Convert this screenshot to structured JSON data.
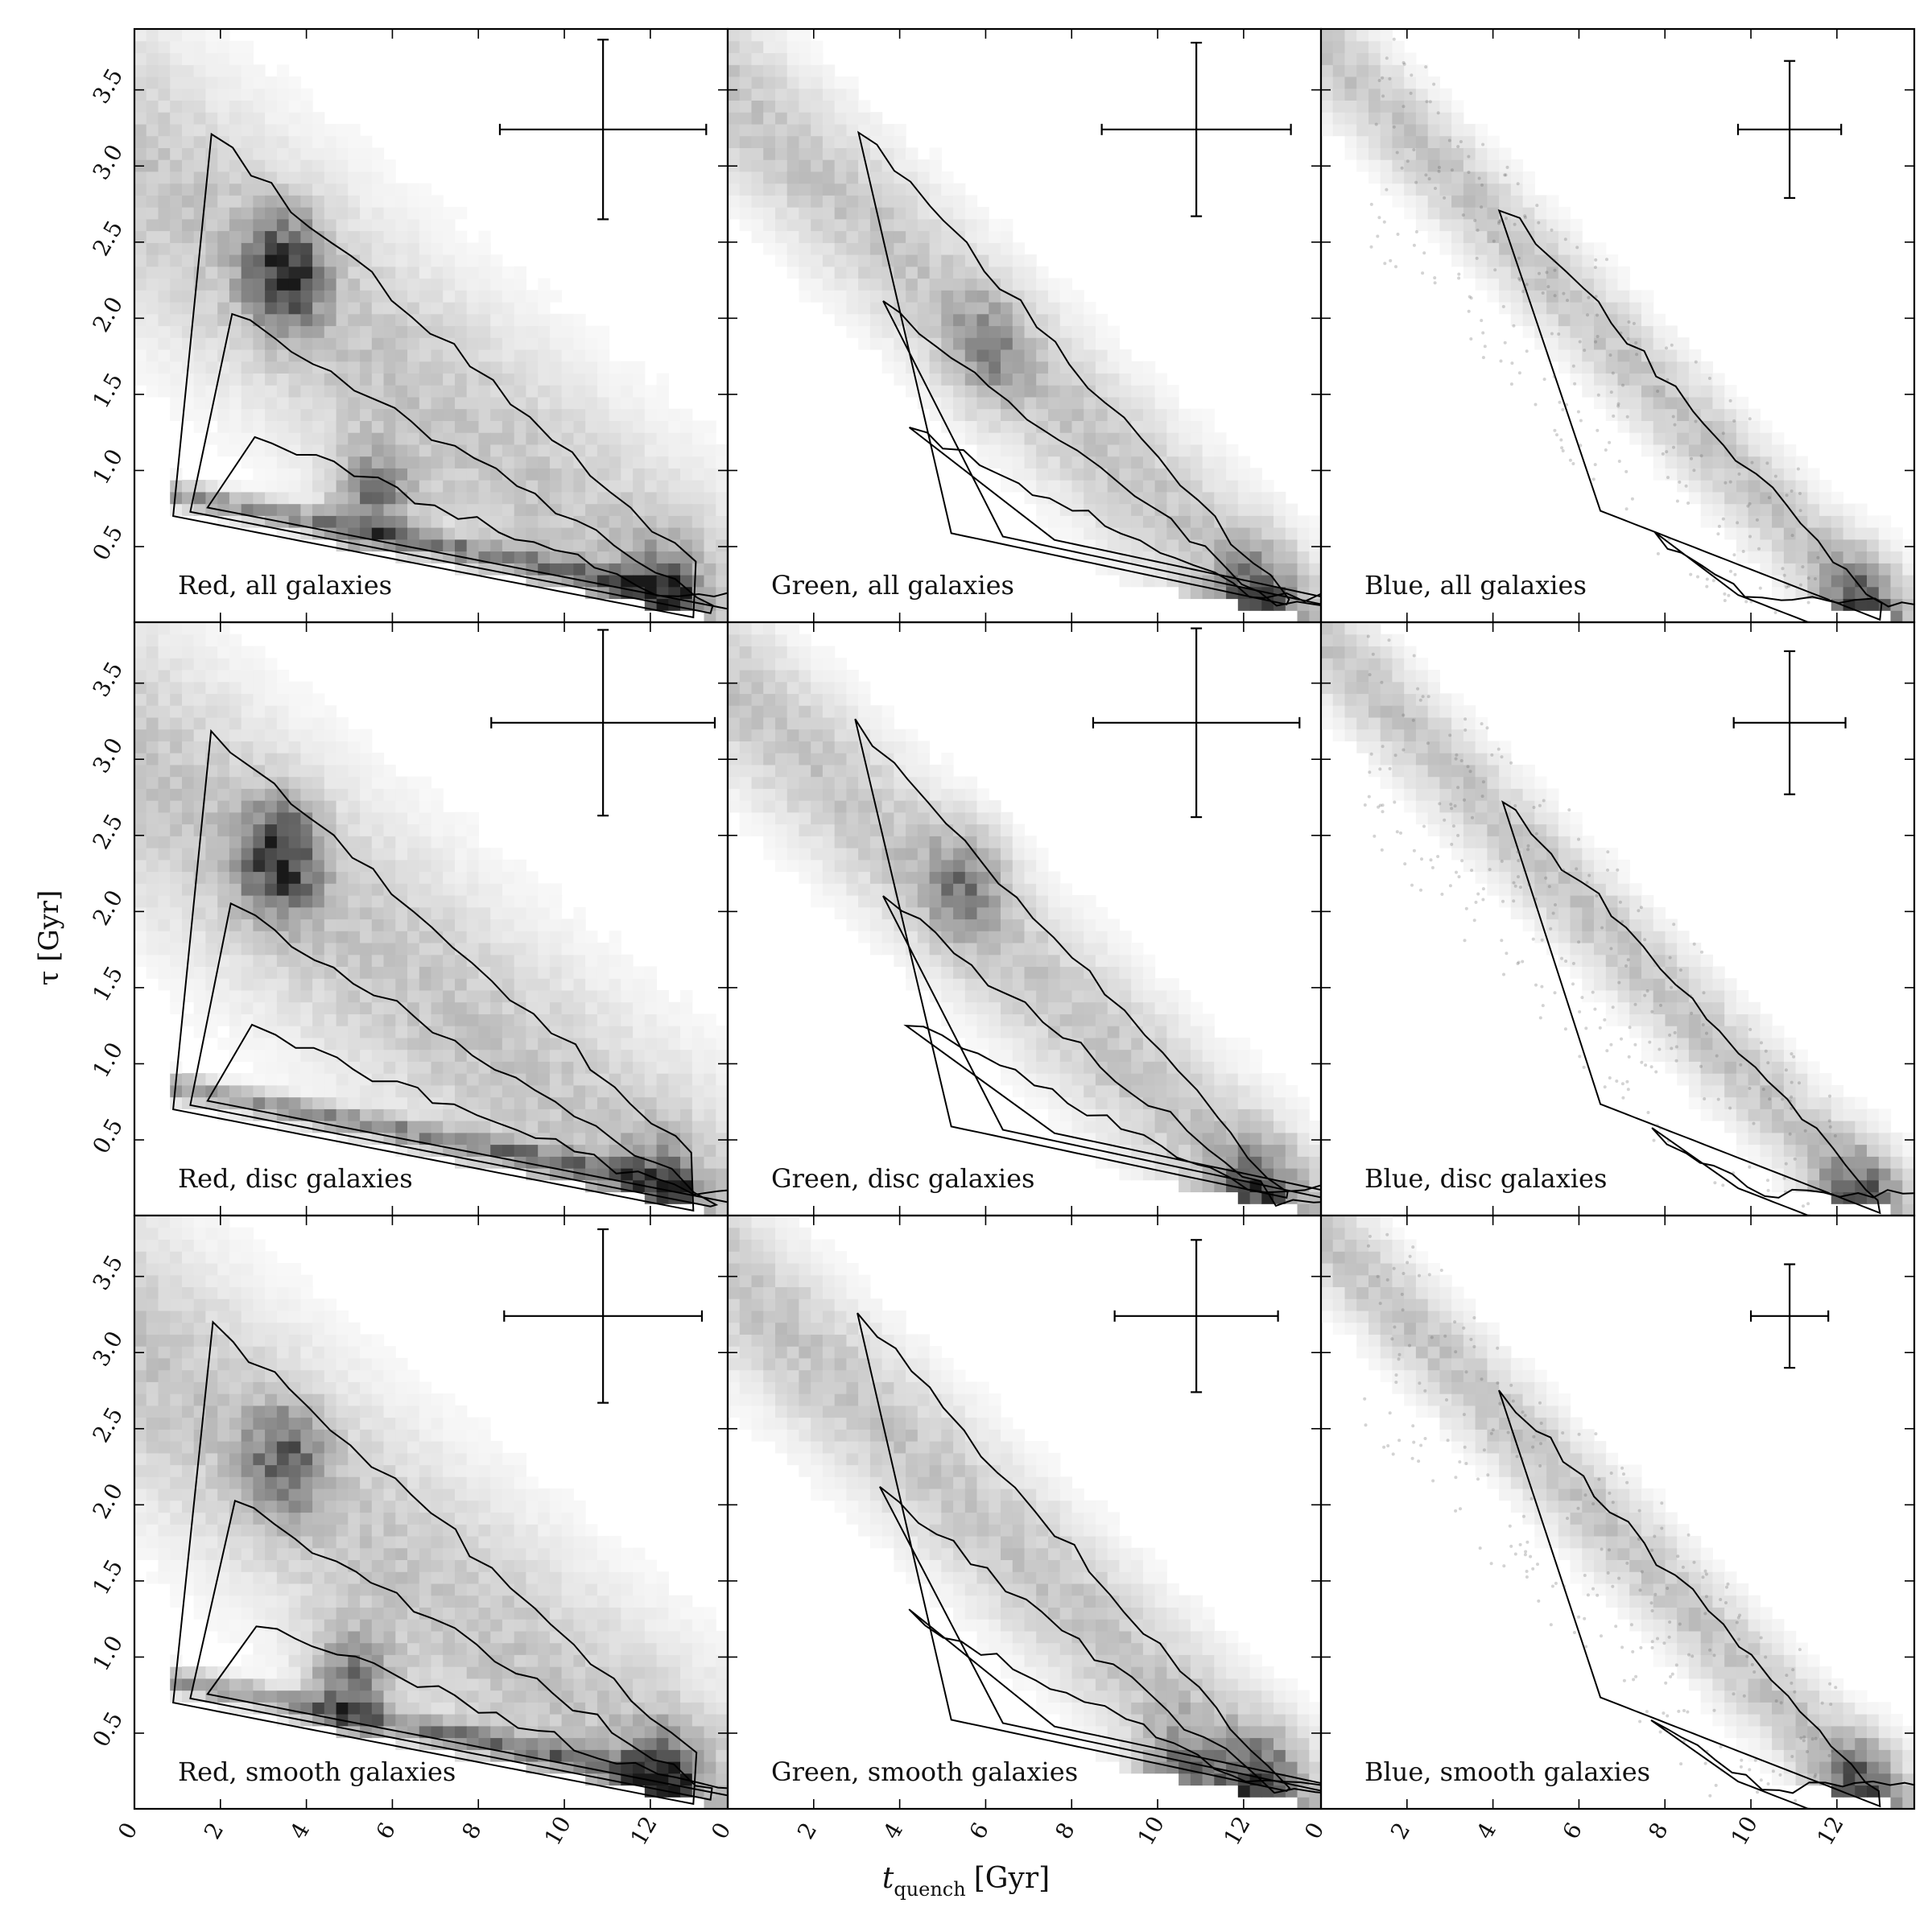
{
  "figure": {
    "xlabel": "t_quench [Gyr]",
    "xlabel_main": "t",
    "xlabel_sub": "quench",
    "xlabel_unit": "[Gyr]",
    "ylabel": "τ [Gyr]"
  },
  "chart_data": {
    "type": "heatmap",
    "description_of_layout": "3x3 grid of 2D density panels with contour lines and error-bar crosses",
    "xlim": [
      0,
      13.8
    ],
    "ylim": [
      0.003,
      3.9
    ],
    "x_ticks": [
      0,
      2,
      4,
      6,
      8,
      10,
      12
    ],
    "y_ticks": [
      0.5,
      1.0,
      1.5,
      2.0,
      2.5,
      3.0,
      3.5
    ],
    "x_tick_labels": [
      "0",
      "2",
      "4",
      "6",
      "8",
      "10",
      "12"
    ],
    "y_tick_labels": [
      "0.5",
      "1.0",
      "1.5",
      "2.0",
      "2.5",
      "3.0",
      "3.5"
    ],
    "grid": false,
    "colormap": "greys",
    "panels": [
      {
        "label": "Red, all galaxies",
        "row": 0,
        "col": 0,
        "errorbar": {
          "x": 10.9,
          "y": 3.24,
          "xerr_low": 2.4,
          "xerr_high": 2.4,
          "yerr_low": 0.59,
          "yerr_high": 0.59
        },
        "density_peaks": [
          {
            "x": 3.5,
            "y": 2.3,
            "w": 1.2
          },
          {
            "x": 12.2,
            "y": 0.15,
            "w": 1.0
          },
          {
            "x": 5.5,
            "y": 0.8,
            "w": 0.8
          }
        ]
      },
      {
        "label": "Green, all galaxies",
        "row": 0,
        "col": 1,
        "errorbar": {
          "x": 10.9,
          "y": 3.24,
          "xerr_low": 2.2,
          "xerr_high": 2.2,
          "yerr_low": 0.57,
          "yerr_high": 0.57
        },
        "density_peaks": [
          {
            "x": 12.3,
            "y": 0.12,
            "w": 1.0
          },
          {
            "x": 6.0,
            "y": 1.8,
            "w": 0.5
          }
        ]
      },
      {
        "label": "Blue, all galaxies",
        "row": 0,
        "col": 2,
        "errorbar": {
          "x": 10.9,
          "y": 3.24,
          "xerr_low": 1.2,
          "xerr_high": 1.2,
          "yerr_low": 0.45,
          "yerr_high": 0.45
        },
        "density_peaks": [
          {
            "x": 12.5,
            "y": 0.05,
            "w": 1.0
          }
        ]
      },
      {
        "label": "Red, disc galaxies",
        "row": 1,
        "col": 0,
        "errorbar": {
          "x": 10.9,
          "y": 3.24,
          "xerr_low": 2.6,
          "xerr_high": 2.6,
          "yerr_low": 0.61,
          "yerr_high": 0.61
        },
        "density_peaks": [
          {
            "x": 3.4,
            "y": 2.35,
            "w": 1.2
          },
          {
            "x": 12.2,
            "y": 0.12,
            "w": 0.9
          }
        ]
      },
      {
        "label": "Green, disc galaxies",
        "row": 1,
        "col": 1,
        "errorbar": {
          "x": 10.9,
          "y": 3.24,
          "xerr_low": 2.4,
          "xerr_high": 2.4,
          "yerr_low": 0.62,
          "yerr_high": 0.62
        },
        "density_peaks": [
          {
            "x": 12.3,
            "y": 0.12,
            "w": 1.0
          },
          {
            "x": 5.5,
            "y": 2.2,
            "w": 0.6
          }
        ]
      },
      {
        "label": "Blue, disc galaxies",
        "row": 1,
        "col": 2,
        "errorbar": {
          "x": 10.9,
          "y": 3.24,
          "xerr_low": 1.3,
          "xerr_high": 1.3,
          "yerr_low": 0.47,
          "yerr_high": 0.47
        },
        "density_peaks": [
          {
            "x": 12.5,
            "y": 0.05,
            "w": 1.0
          }
        ]
      },
      {
        "label": "Red, smooth galaxies",
        "row": 2,
        "col": 0,
        "errorbar": {
          "x": 10.9,
          "y": 3.24,
          "xerr_low": 2.3,
          "xerr_high": 2.3,
          "yerr_low": 0.57,
          "yerr_high": 0.57
        },
        "density_peaks": [
          {
            "x": 3.5,
            "y": 2.3,
            "w": 0.8
          },
          {
            "x": 12.2,
            "y": 0.15,
            "w": 1.0
          },
          {
            "x": 5.0,
            "y": 0.8,
            "w": 0.9
          }
        ]
      },
      {
        "label": "Green, smooth galaxies",
        "row": 2,
        "col": 1,
        "errorbar": {
          "x": 10.9,
          "y": 3.24,
          "xerr_low": 1.9,
          "xerr_high": 1.9,
          "yerr_low": 0.5,
          "yerr_high": 0.5
        },
        "density_peaks": [
          {
            "x": 12.3,
            "y": 0.15,
            "w": 1.0
          },
          {
            "x": 10.5,
            "y": 0.2,
            "w": 0.8
          }
        ]
      },
      {
        "label": "Blue, smooth galaxies",
        "row": 2,
        "col": 2,
        "errorbar": {
          "x": 10.9,
          "y": 3.24,
          "xerr_low": 0.9,
          "xerr_high": 0.9,
          "yerr_low": 0.34,
          "yerr_high": 0.34
        },
        "density_peaks": [
          {
            "x": 12.5,
            "y": 0.08,
            "w": 1.0
          }
        ]
      }
    ]
  }
}
